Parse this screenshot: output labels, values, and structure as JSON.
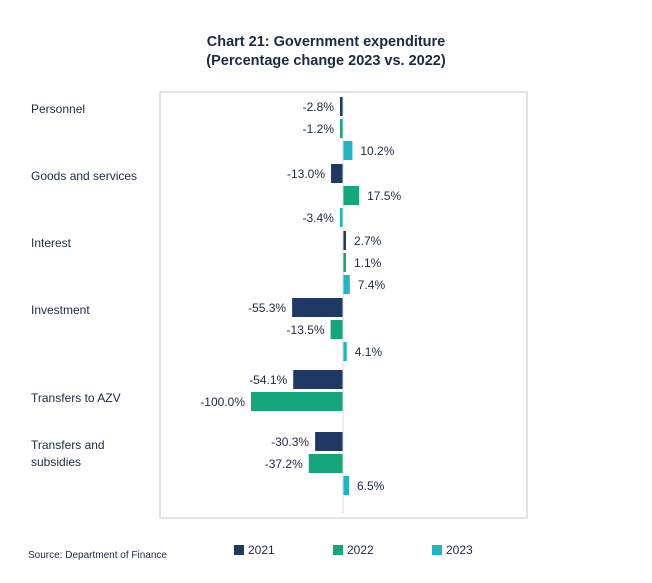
{
  "chart_data": {
    "type": "bar",
    "orientation": "horizontal",
    "title": "Chart 21: Government expenditure",
    "subtitle": "(Percentage change 2023 vs. 2022)",
    "categories": [
      "Personnel",
      "Goods and services",
      "Interest",
      "Investment",
      "Transfers to AZV",
      "Transfers and subsidies"
    ],
    "series": [
      {
        "name": "2021",
        "color": "#1f3864",
        "values": [
          -2.8,
          -13.0,
          2.7,
          -55.3,
          -54.1,
          -30.3
        ],
        "labels": [
          "-2.8%",
          "-13.0%",
          "2.7%",
          "-55.3%",
          "-54.1%",
          "-30.3%"
        ]
      },
      {
        "name": "2022",
        "color": "#15a67e",
        "values": [
          -1.2,
          17.5,
          1.1,
          -13.5,
          -100.0,
          -37.2
        ],
        "labels": [
          "-1.2%",
          "17.5%",
          "1.1%",
          "-13.5%",
          "-100.0%",
          "-37.2%"
        ]
      },
      {
        "name": "2023",
        "color": "#1fb5c5",
        "values": [
          10.2,
          -3.4,
          7.4,
          4.1,
          null,
          6.5
        ],
        "labels": [
          "10.2%",
          "-3.4%",
          "7.4%",
          "4.1%",
          "",
          "6.5%"
        ]
      }
    ],
    "legend_position": "bottom",
    "grid": false
  },
  "source": "Source: Department of Finance"
}
